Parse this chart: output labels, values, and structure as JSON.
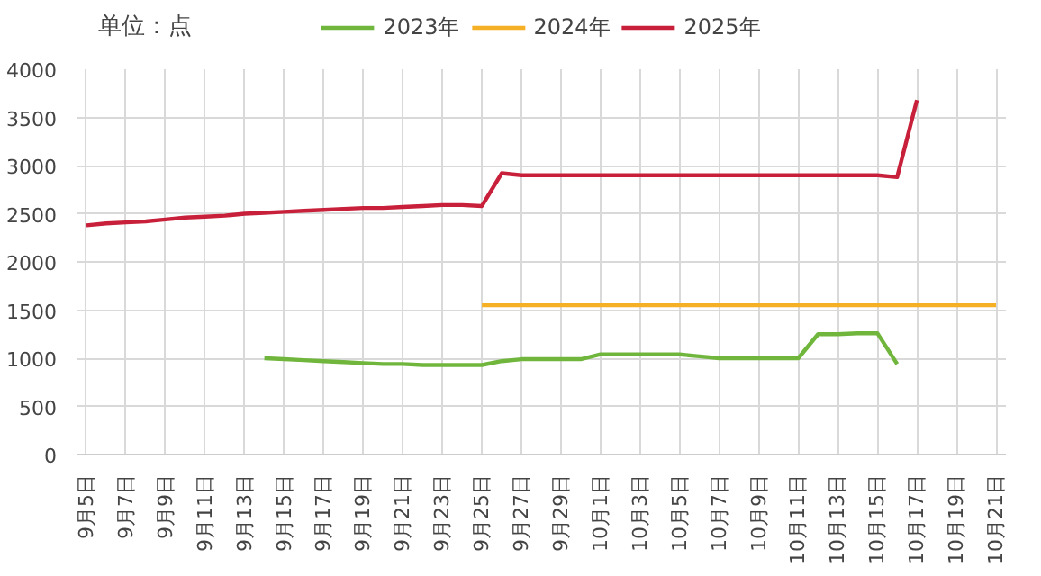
{
  "chart_data": {
    "type": "line",
    "title": "单位：点",
    "categories": [
      "9月5日",
      null,
      "9月7日",
      null,
      "9月9日",
      null,
      "9月11日",
      null,
      "9月13日",
      null,
      "9月15日",
      null,
      "9月17日",
      null,
      "9月19日",
      null,
      "9月21日",
      null,
      "9月23日",
      null,
      "9月25日",
      null,
      "9月27日",
      null,
      "9月29日",
      null,
      "10月1日",
      null,
      "10月3日",
      null,
      "10月5日",
      null,
      "10月7日",
      null,
      "10月9日",
      null,
      "10月11日",
      null,
      "10月13日",
      null,
      "10月15日",
      null,
      "10月17日",
      null,
      "10月19日",
      null,
      "10月21日"
    ],
    "series": [
      {
        "name": "2023年",
        "color": "#70b63c",
        "values": [
          null,
          null,
          null,
          null,
          null,
          null,
          null,
          null,
          null,
          1000,
          990,
          980,
          970,
          960,
          950,
          940,
          940,
          930,
          930,
          930,
          930,
          970,
          990,
          990,
          990,
          990,
          1040,
          1040,
          1040,
          1040,
          1040,
          1020,
          1000,
          1000,
          1000,
          1000,
          1000,
          1250,
          1250,
          1260,
          1260,
          940,
          null,
          null,
          null,
          null,
          null
        ]
      },
      {
        "name": "2024年",
        "color": "#f5b025",
        "values": [
          null,
          null,
          null,
          null,
          null,
          null,
          null,
          null,
          null,
          null,
          null,
          null,
          null,
          null,
          null,
          null,
          null,
          null,
          null,
          null,
          1550,
          1550,
          1550,
          1550,
          1550,
          1550,
          1550,
          1550,
          1550,
          1550,
          1550,
          1550,
          1550,
          1550,
          1550,
          1550,
          1550,
          1550,
          1550,
          1550,
          1550,
          1550,
          1550,
          1550,
          1550,
          1550,
          1550
        ]
      },
      {
        "name": "2025年",
        "color": "#c8203a",
        "values": [
          2380,
          2400,
          2410,
          2420,
          2440,
          2460,
          2470,
          2480,
          2500,
          2510,
          2520,
          2530,
          2540,
          2550,
          2560,
          2560,
          2570,
          2580,
          2590,
          2590,
          2580,
          2920,
          2900,
          2900,
          2900,
          2900,
          2900,
          2900,
          2900,
          2900,
          2900,
          2900,
          2900,
          2900,
          2900,
          2900,
          2900,
          2900,
          2900,
          2900,
          2900,
          2880,
          3680,
          null,
          null,
          null,
          null
        ]
      }
    ],
    "ylim": [
      0,
      4000
    ],
    "yticks": [
      0,
      500,
      1000,
      1500,
      2000,
      2500,
      3000,
      3500,
      4000
    ],
    "grid": true,
    "legend": "top",
    "marker": "none",
    "line_style": "solid"
  }
}
